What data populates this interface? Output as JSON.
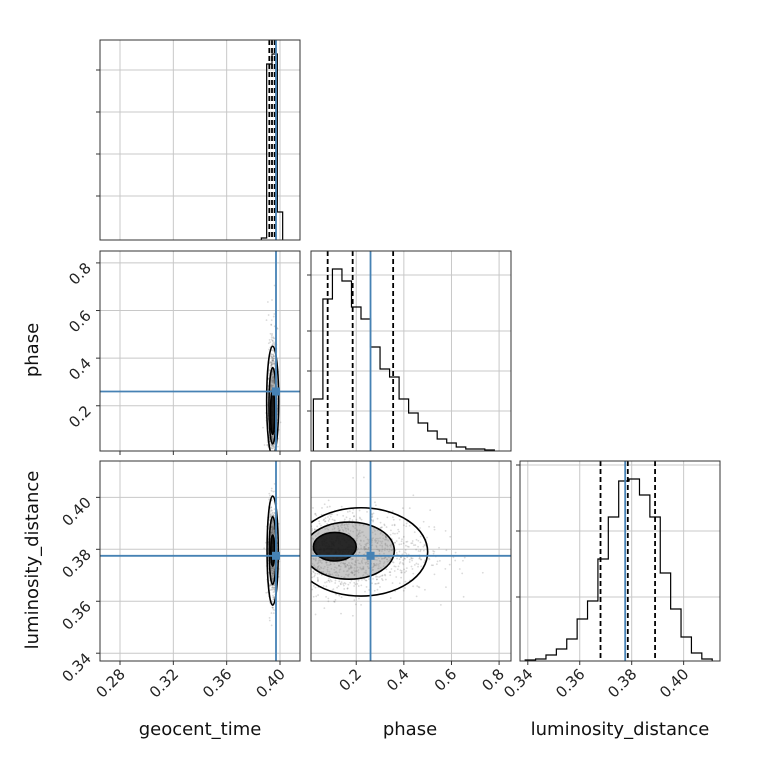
{
  "chart_data": {
    "type": "corner",
    "parameters": [
      "geocent_time",
      "phase",
      "luminosity_distance"
    ],
    "truths": {
      "geocent_time": 0.397,
      "phase": 0.26,
      "luminosity_distance": 0.3775
    },
    "quantiles": {
      "geocent_time": [
        0.392,
        0.394,
        0.396
      ],
      "phase": [
        0.08,
        0.185,
        0.355
      ],
      "luminosity_distance": [
        0.368,
        0.3785,
        0.389
      ]
    },
    "ranges": {
      "geocent_time": [
        0.265,
        0.415
      ],
      "phase": [
        0.01,
        0.85
      ],
      "luminosity_distance": [
        0.337,
        0.414
      ]
    },
    "ticks": {
      "geocent_time": [
        "0.28",
        "0.32",
        "0.36",
        "0.40"
      ],
      "phase": [
        "0.2",
        "0.4",
        "0.6",
        "0.8"
      ],
      "luminosity_distance": [
        "0.34",
        "0.36",
        "0.38",
        "0.40"
      ]
    },
    "hist_phase": {
      "x": [
        0.04,
        0.08,
        0.12,
        0.16,
        0.2,
        0.24,
        0.28,
        0.32,
        0.36,
        0.4,
        0.44,
        0.48,
        0.52,
        0.56,
        0.6,
        0.64,
        0.68,
        0.72,
        0.76
      ],
      "y": [
        0.26,
        0.76,
        0.91,
        0.85,
        0.72,
        0.66,
        0.52,
        0.41,
        0.37,
        0.26,
        0.19,
        0.14,
        0.1,
        0.06,
        0.04,
        0.02,
        0.01,
        0.01,
        0.005
      ]
    },
    "hist_lum": {
      "x": [
        0.341,
        0.345,
        0.349,
        0.353,
        0.357,
        0.361,
        0.365,
        0.369,
        0.373,
        0.377,
        0.381,
        0.385,
        0.389,
        0.393,
        0.397,
        0.401,
        0.405,
        0.409
      ],
      "y": [
        0.005,
        0.01,
        0.03,
        0.06,
        0.11,
        0.21,
        0.3,
        0.51,
        0.72,
        0.9,
        0.91,
        0.83,
        0.72,
        0.44,
        0.26,
        0.12,
        0.04,
        0.01
      ]
    },
    "hist_geocent": {
      "x": [
        0.388,
        0.392,
        0.396,
        0.4
      ],
      "y": [
        0.01,
        0.88,
        0.93,
        0.14
      ]
    },
    "grid": true,
    "series_color": "#000000",
    "truth_color": "#4682b4"
  }
}
